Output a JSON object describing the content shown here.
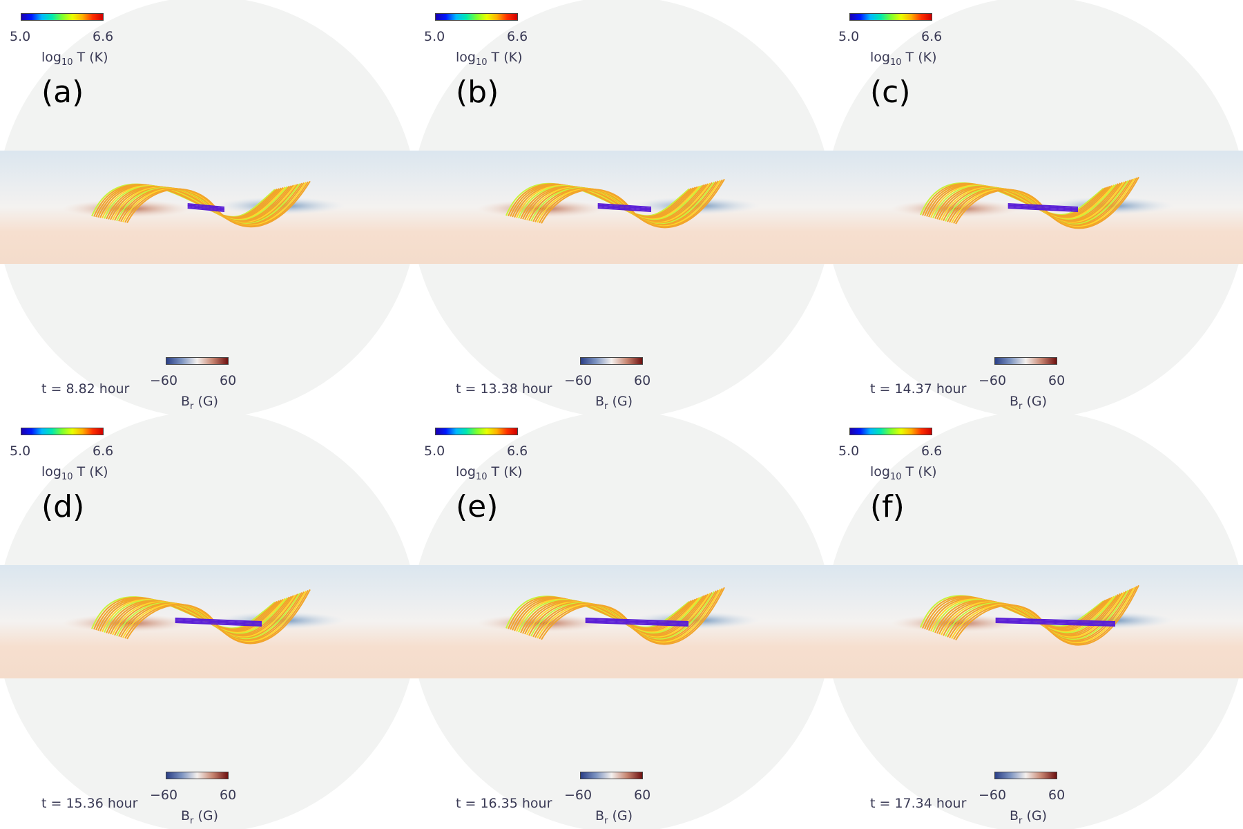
{
  "panels": [
    {
      "label": "(a)",
      "time": "t = 8.82 hour"
    },
    {
      "label": "(b)",
      "time": "t = 13.38 hour"
    },
    {
      "label": "(c)",
      "time": "t = 14.37 hour"
    },
    {
      "label": "(d)",
      "time": "t = 15.36 hour"
    },
    {
      "label": "(e)",
      "time": "t = 16.35 hour"
    },
    {
      "label": "(f)",
      "time": "t = 17.34 hour"
    }
  ],
  "temperature_colorbar": {
    "min": "5.0",
    "max": "6.6",
    "label_prefix": "log",
    "label_sub": "10",
    "label_suffix": " T (K)"
  },
  "field_colorbar": {
    "min": "−60",
    "max": "60",
    "label_prefix": "B",
    "label_sub": "r",
    "label_suffix": " (G)"
  },
  "colors": {
    "disk_background": "#f2f3f2",
    "upper_band": "#dbe6ef",
    "lower_band": "#f6dccb",
    "field_lines": "#f2a52a",
    "hot_core": "#5a1fd6",
    "positive_polarity": "#c8775a",
    "negative_polarity": "#6d93bd"
  }
}
